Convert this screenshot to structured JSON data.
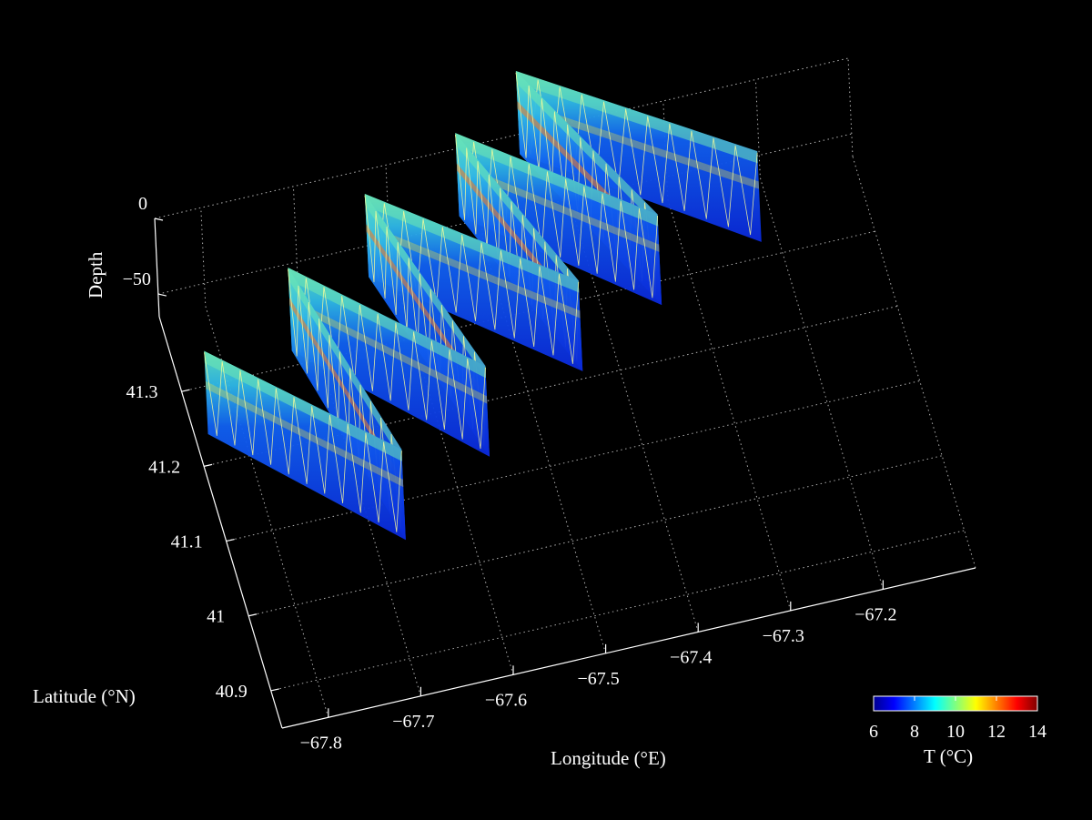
{
  "chart_data": {
    "type": "3d-curtain",
    "title": "",
    "xlabel": "Longitude (°E)",
    "ylabel": "Latitude (°N)",
    "zlabel": "Depth",
    "xticks": [
      "−67.8",
      "−67.7",
      "−67.6",
      "−67.5",
      "−67.4",
      "−67.3",
      "−67.2"
    ],
    "yticks": [
      "40.9",
      "41",
      "41.1",
      "41.2",
      "41.3"
    ],
    "zticks": [
      "0",
      "−50"
    ],
    "xlim": [
      -67.85,
      -67.1
    ],
    "ylim": [
      40.85,
      41.4
    ],
    "zlim": [
      -65,
      0
    ],
    "grid": true,
    "background": "#000000",
    "colorbar": {
      "label": "T (°C)",
      "ticks": [
        "6",
        "8",
        "10",
        "12",
        "14"
      ],
      "range": [
        6,
        14
      ],
      "colormap": "jet",
      "placement": "bottom-right"
    },
    "transect": {
      "description_series": "glider survey track",
      "vertices": [
        {
          "lon": -67.84,
          "lat": 41.22,
          "depth": -55
        },
        {
          "lon": -67.67,
          "lat": 41.04,
          "depth": -60
        },
        {
          "lon": -67.73,
          "lat": 41.3,
          "depth": -55
        },
        {
          "lon": -67.56,
          "lat": 41.12,
          "depth": -60
        },
        {
          "lon": -67.63,
          "lat": 41.37,
          "depth": -55
        },
        {
          "lon": -67.44,
          "lat": 41.2,
          "depth": -60
        },
        {
          "lon": -67.52,
          "lat": 41.42,
          "depth": -55
        },
        {
          "lon": -67.34,
          "lat": 41.26,
          "depth": -60
        },
        {
          "lon": -67.44,
          "lat": 41.48,
          "depth": -55
        },
        {
          "lon": -67.22,
          "lat": 41.31,
          "depth": -60
        }
      ]
    }
  }
}
